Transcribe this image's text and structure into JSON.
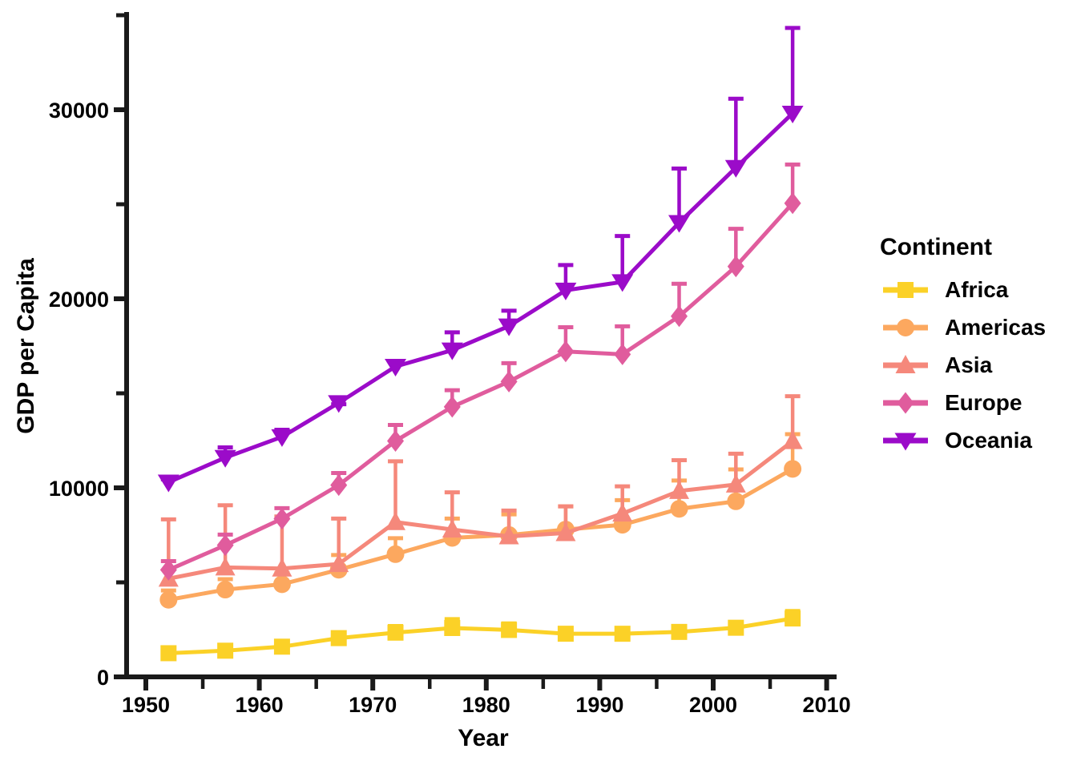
{
  "chart_data": {
    "type": "line",
    "xlabel": "Year",
    "ylabel": "GDP per Capita",
    "legend_title": "Continent",
    "legend_position": "right",
    "grid": false,
    "error_bars": "upper only (mean + standard error)",
    "x": [
      1952,
      1957,
      1962,
      1967,
      1972,
      1977,
      1982,
      1987,
      1992,
      1997,
      2002,
      2007
    ],
    "x_major_ticks": [
      1950,
      1960,
      1970,
      1980,
      1990,
      2000,
      2010
    ],
    "x_minor_ticks": [
      1955,
      1965,
      1975,
      1985,
      1995,
      2005
    ],
    "y_major_ticks": [
      0,
      10000,
      20000,
      30000
    ],
    "y_minor_ticks": [
      5000,
      15000,
      25000,
      35000
    ],
    "x_range": [
      1948.3,
      2010.9
    ],
    "y_range": [
      0,
      35150
    ],
    "series": [
      {
        "name": "Africa",
        "marker": "square",
        "color": "#FBD127",
        "values": [
          1252.6,
          1385.2,
          1598.1,
          2050.4,
          2339.6,
          2585.9,
          2481.6,
          2282.7,
          2281.8,
          2378.8,
          2599.4,
          3089.0
        ],
        "upper": [
          1388,
          1542,
          1801,
          2445,
          2796,
          3160,
          2932,
          2639,
          2649,
          2770,
          3011,
          3591
        ]
      },
      {
        "name": "Americas",
        "marker": "circle",
        "color": "#FCA85F",
        "values": [
          4079.1,
          4616.0,
          4901.5,
          5668.3,
          6491.3,
          7352.0,
          7506.7,
          7793.4,
          8044.9,
          8889.3,
          9287.7,
          11003.0
        ],
        "upper": [
          4679,
          5278,
          5586,
          6550,
          7442,
          8480,
          8700,
          9126,
          9454,
          10490,
          11080,
          12946
        ]
      },
      {
        "name": "Asia",
        "marker": "triangle-up",
        "color": "#F5887B",
        "values": [
          5195.5,
          5787.7,
          5729.4,
          5971.2,
          8187.5,
          7791.3,
          7434.1,
          7608.2,
          8639.7,
          9834.1,
          10174.1,
          12473.0
        ],
        "upper": [
          8439,
          9184,
          8591,
          8480,
          11511,
          9870,
          8905,
          9127,
          10184,
          11570,
          11910,
          14950
        ]
      },
      {
        "name": "Europe",
        "marker": "diamond",
        "color": "#E05C9D",
        "values": [
          5661.1,
          6963.0,
          8365.5,
          10143.8,
          12479.6,
          14284.0,
          15617.9,
          17214.3,
          17061.6,
          19076.8,
          21711.7,
          25054.5
        ],
        "upper": [
          6230,
          7635,
          9031,
          10889,
          13430,
          15268,
          16700,
          18600,
          18650,
          20900,
          23810,
          27208
        ]
      },
      {
        "name": "Oceania",
        "marker": "triangle-down",
        "color": "#9B0BC9",
        "values": [
          10298.1,
          11598.5,
          12696.5,
          14495.0,
          16417.3,
          17284.0,
          18554.7,
          20448.0,
          20894.0,
          24024.2,
          26938.8,
          29810.2
        ],
        "upper": [
          10556.6,
          12247.4,
          13175.7,
          14526.1,
          16788.6,
          18334.2,
          19477.0,
          21888.9,
          23424.8,
          26997.9,
          30687.8,
          34435.4
        ]
      }
    ]
  }
}
